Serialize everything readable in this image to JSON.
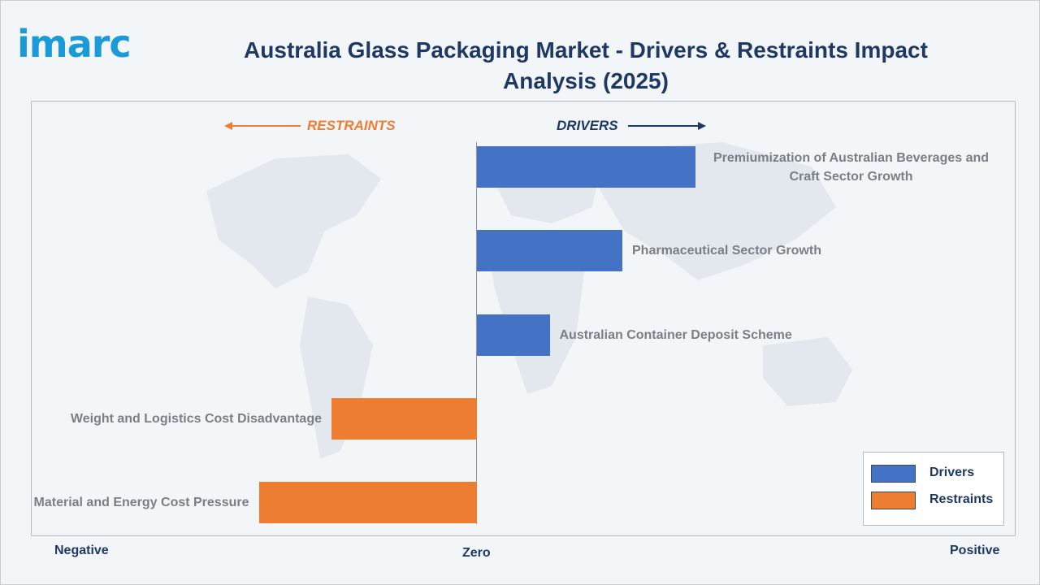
{
  "brand": {
    "logo_text": "imarc"
  },
  "header": {
    "title": "Australia Glass Packaging Market - Drivers & Restraints Impact Analysis (2025)"
  },
  "direction_labels": {
    "restraints": "RESTRAINTS",
    "drivers": "DRIVERS"
  },
  "axis": {
    "negative": "Negative",
    "zero": "Zero",
    "positive": "Positive"
  },
  "colors": {
    "drivers": "#4472c4",
    "restraints": "#ed7d31",
    "title": "#1f3864",
    "logo": "#1a9ad6"
  },
  "chart_data": {
    "type": "bar",
    "orientation": "horizontal",
    "title": "Australia Glass Packaging Market - Drivers & Restraints Impact Analysis (2025)",
    "categories": [
      "Premiumization of Australian Beverages and Craft Sector Growth",
      "Pharmaceutical Sector Growth",
      "Australian Container Deposit Scheme",
      "Weight and Logistics Cost Disadvantage",
      "Raw Material and Energy Cost Pressure"
    ],
    "series": [
      {
        "name": "Drivers",
        "values": [
          3.0,
          2.0,
          1.0,
          null,
          null
        ]
      },
      {
        "name": "Restraints",
        "values": [
          null,
          null,
          null,
          -2.0,
          -3.0
        ]
      }
    ],
    "xlim": [
      -6.3,
      7.2
    ],
    "grid": false,
    "legend_position": "bottom-right",
    "legend": [
      "Drivers",
      "Restraints"
    ]
  }
}
